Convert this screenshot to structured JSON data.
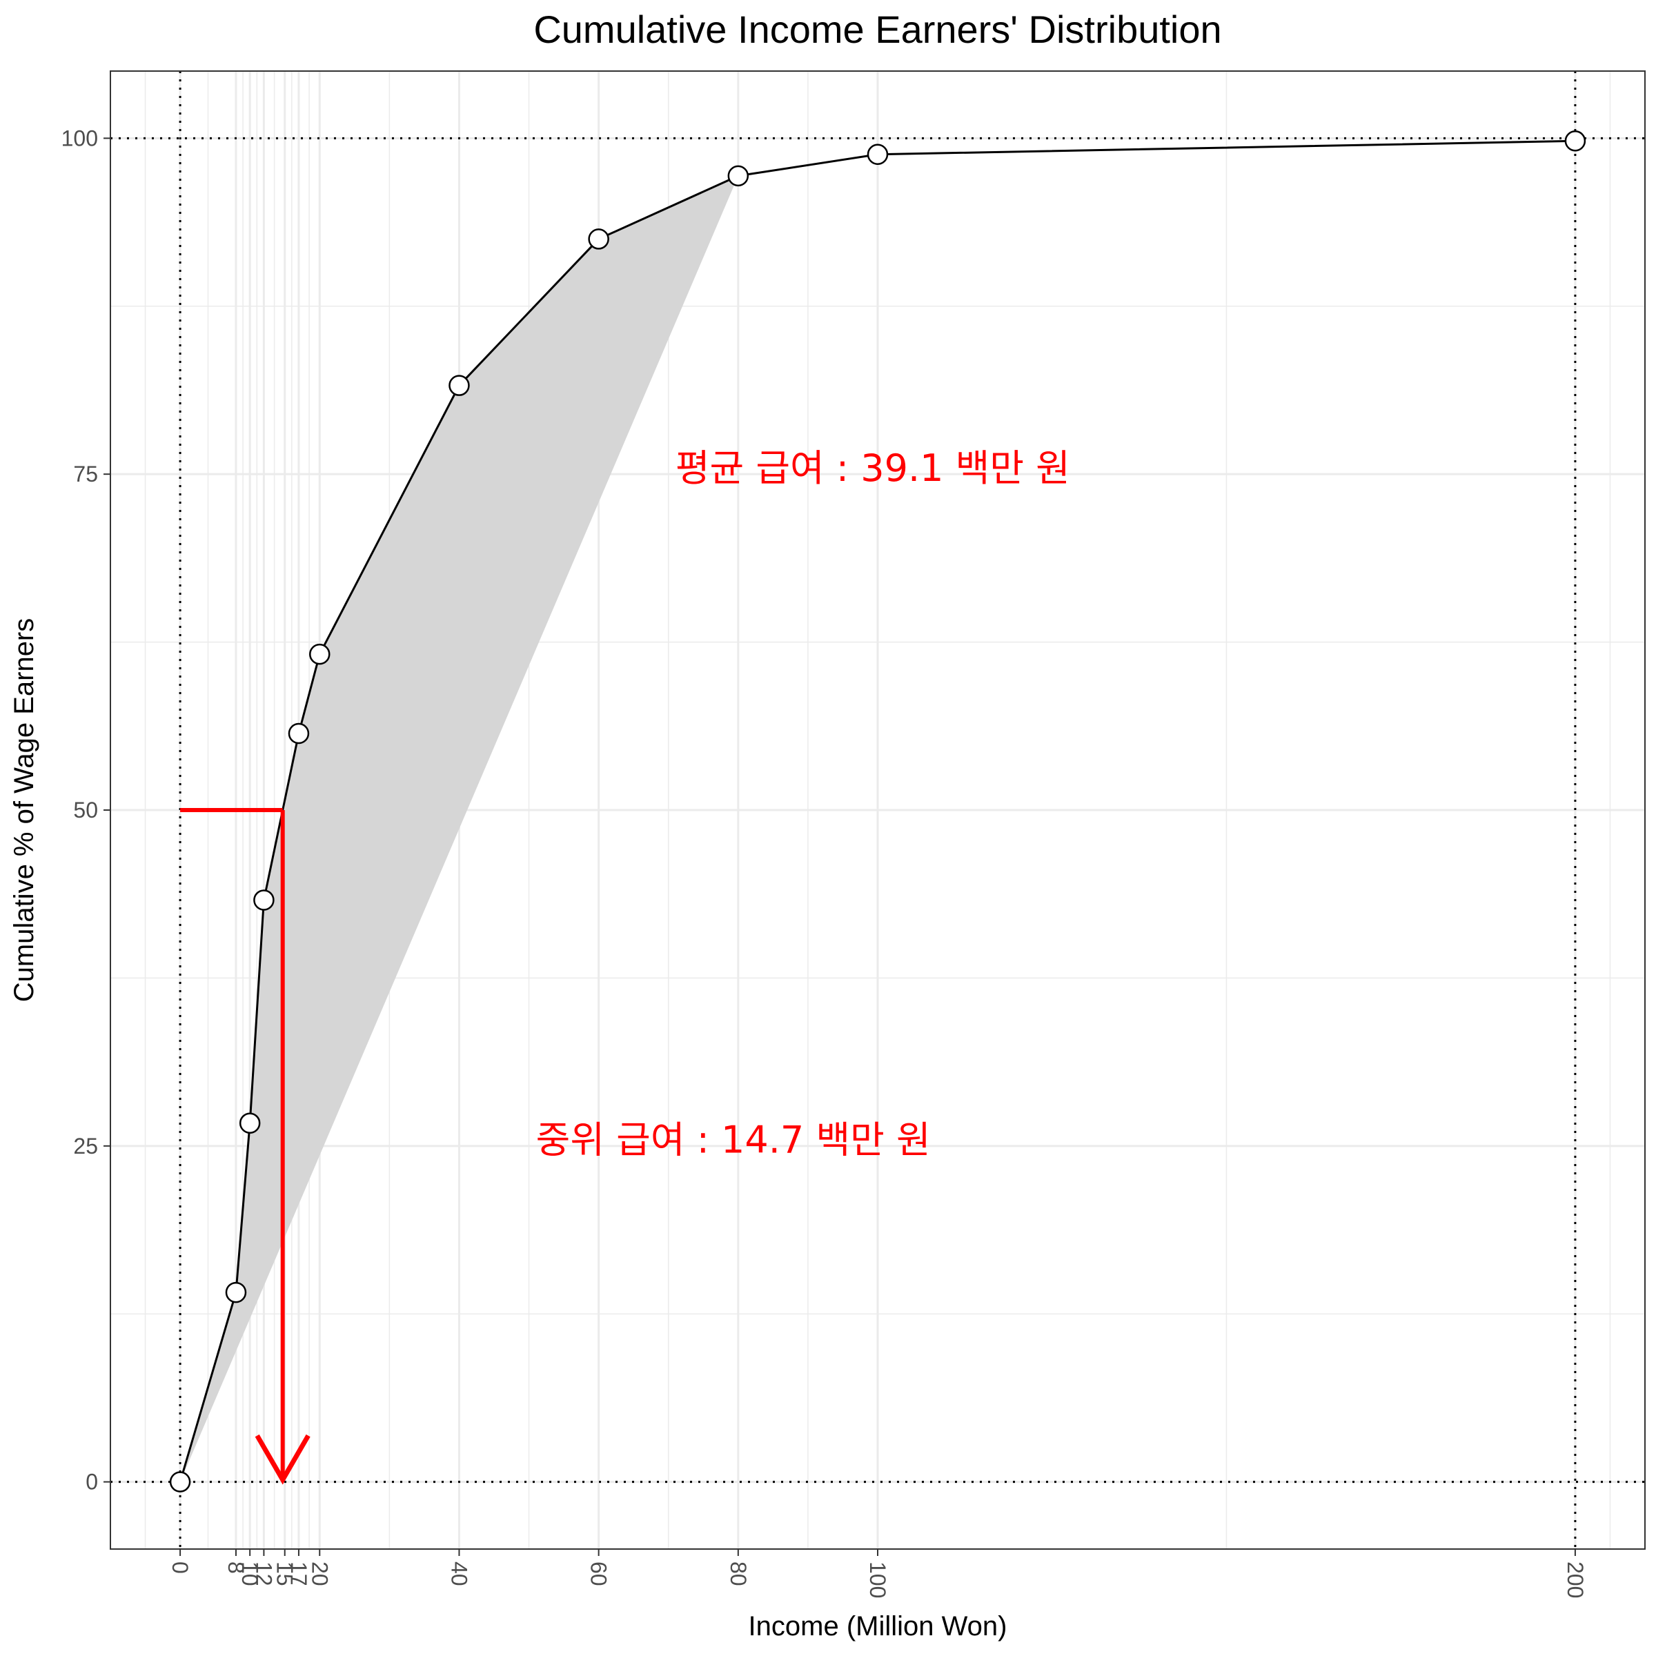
{
  "chart_data": {
    "type": "line",
    "title": "Cumulative Income Earners' Distribution",
    "xlabel": "Income (Million Won)",
    "ylabel": "Cumulative % of Wage Earners",
    "xlim": [
      -10,
      210
    ],
    "ylim": [
      -5,
      105
    ],
    "x_ticks": [
      0,
      8,
      10,
      12,
      15,
      17,
      20,
      40,
      60,
      80,
      100,
      200
    ],
    "y_ticks": [
      0,
      25,
      50,
      75,
      100
    ],
    "grid": true,
    "series": [
      {
        "x": [
          0,
          8,
          10,
          12,
          17,
          20,
          40,
          60,
          80,
          100,
          200
        ],
        "y": [
          0,
          14.1,
          26.7,
          43.3,
          55.7,
          61.6,
          81.6,
          92.5,
          97.2,
          98.8,
          99.8
        ]
      }
    ],
    "equality_line": {
      "x": [
        0,
        80
      ],
      "y": [
        0,
        97.2
      ]
    },
    "reference_lines": {
      "x": [
        0,
        200
      ],
      "y": [
        0,
        100
      ]
    },
    "median": {
      "x": 14.7,
      "y": 50
    },
    "annotations": [
      {
        "text": "평균 급여 : 39.1 백만 원",
        "x": 71,
        "y": 74.5
      },
      {
        "text": "중위 급여 : 14.7 백만 원",
        "x": 51,
        "y": 24.5
      }
    ],
    "colors": {
      "annotation": "#ff0000",
      "fill": "#d6d6d6",
      "grid": "#ebebeb"
    }
  }
}
